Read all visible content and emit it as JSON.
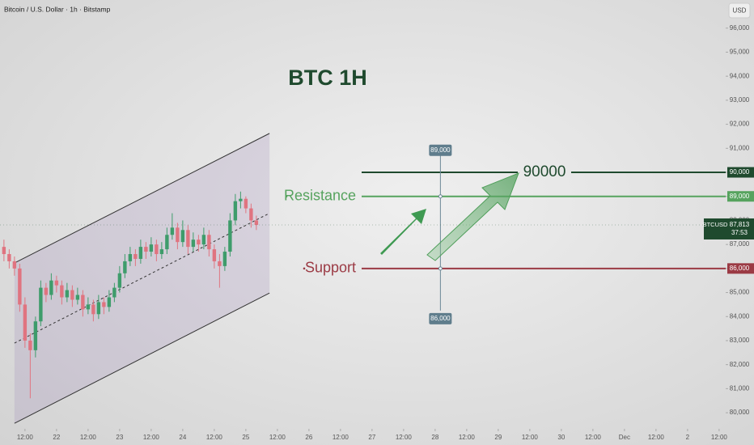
{
  "chart_data": {
    "type": "candlestick",
    "title": "Bitcoin / U.S. Dollar · 1h · Bitstamp",
    "currency_button": "USD",
    "headline": "BTC 1H",
    "colors": {
      "up": "#3e9c6b",
      "down": "#e07480"
    },
    "xlim": [
      2.5,
      278.5
    ],
    "ylim": [
      79330,
      97170
    ],
    "xticks": [
      {
        "value": 12,
        "label": "12:00"
      },
      {
        "value": 24,
        "label": "22"
      },
      {
        "value": 36,
        "label": "12:00"
      },
      {
        "value": 48,
        "label": "23"
      },
      {
        "value": 60,
        "label": "12:00"
      },
      {
        "value": 72,
        "label": "24"
      },
      {
        "value": 84,
        "label": "12:00"
      },
      {
        "value": 96,
        "label": "25"
      },
      {
        "value": 108,
        "label": "12:00"
      },
      {
        "value": 120,
        "label": "26"
      },
      {
        "value": 132,
        "label": "12:00"
      },
      {
        "value": 144,
        "label": "27"
      },
      {
        "value": 156,
        "label": "12:00"
      },
      {
        "value": 168,
        "label": "28"
      },
      {
        "value": 180,
        "label": "12:00"
      },
      {
        "value": 192,
        "label": "29"
      },
      {
        "value": 204,
        "label": "12:00"
      },
      {
        "value": 216,
        "label": "30"
      },
      {
        "value": 228,
        "label": "12:00"
      },
      {
        "value": 240,
        "label": "Dec"
      },
      {
        "value": 252,
        "label": "12:00"
      },
      {
        "value": 264,
        "label": "2"
      },
      {
        "value": 276,
        "label": "12:00"
      }
    ],
    "yticks": [
      {
        "value": 80000,
        "label": "80,000"
      },
      {
        "value": 81000,
        "label": "81,000"
      },
      {
        "value": 82000,
        "label": "82,000"
      },
      {
        "value": 83000,
        "label": "83,000"
      },
      {
        "value": 84000,
        "label": "84,000"
      },
      {
        "value": 85000,
        "label": "85,000"
      },
      {
        "value": 86000,
        "label": "86,000"
      },
      {
        "value": 87000,
        "label": "87,000"
      },
      {
        "value": 88000,
        "label": "88,000"
      },
      {
        "value": 89000,
        "label": "89,000"
      },
      {
        "value": 90000,
        "label": "90,000"
      },
      {
        "value": 91000,
        "label": "91,000"
      },
      {
        "value": 92000,
        "label": "92,000"
      },
      {
        "value": 93000,
        "label": "93,000"
      },
      {
        "value": 94000,
        "label": "94,000"
      },
      {
        "value": 95000,
        "label": "95,000"
      },
      {
        "value": 96000,
        "label": "96,000"
      }
    ],
    "candles": {
      "x": [
        4,
        6,
        8,
        10,
        12,
        14,
        16,
        18,
        20,
        22,
        24,
        26,
        28,
        30,
        32,
        34,
        36,
        38,
        40,
        42,
        44,
        46,
        48,
        50,
        52,
        54,
        56,
        58,
        60,
        62,
        64,
        66,
        68,
        70,
        72,
        74,
        76,
        78,
        80,
        82,
        84,
        86,
        88,
        90,
        92,
        94,
        96,
        98,
        100
      ],
      "open": [
        86900,
        86600,
        86300,
        86000,
        84500,
        83000,
        82600,
        83800,
        85200,
        84900,
        85500,
        85300,
        84800,
        85100,
        84700,
        84900,
        84300,
        84500,
        84100,
        84600,
        84400,
        84800,
        85200,
        85800,
        86300,
        86600,
        86400,
        86900,
        86700,
        87000,
        86600,
        86800,
        87400,
        87700,
        87100,
        87600,
        86900,
        87200,
        87000,
        87400,
        86800,
        86300,
        86100,
        86700,
        88000,
        88800,
        88900,
        88500,
        88000
      ],
      "high": [
        87200,
        86800,
        86500,
        86200,
        84800,
        83300,
        84000,
        85500,
        85400,
        85800,
        85700,
        85500,
        85400,
        85300,
        85200,
        85100,
        84800,
        84700,
        84900,
        84800,
        85100,
        85400,
        86100,
        86600,
        86900,
        86800,
        87200,
        87100,
        87300,
        87200,
        87100,
        87700,
        88300,
        87900,
        88000,
        87800,
        87500,
        87400,
        87700,
        87600,
        87000,
        86600,
        86900,
        88300,
        89100,
        89200,
        89000,
        88700,
        88200
      ],
      "low": [
        86300,
        86000,
        85700,
        84200,
        82700,
        80600,
        82300,
        83600,
        84600,
        84700,
        85000,
        84500,
        84600,
        84400,
        84500,
        84000,
        84100,
        83800,
        83900,
        84100,
        84200,
        84600,
        85000,
        85600,
        86100,
        86100,
        86200,
        86400,
        86500,
        86300,
        86400,
        86600,
        87200,
        86800,
        86900,
        86600,
        86700,
        86700,
        86800,
        86500,
        86000,
        85200,
        85900,
        86500,
        87800,
        88500,
        88300,
        87700,
        87600
      ],
      "close": [
        86600,
        86300,
        86000,
        84500,
        83000,
        82600,
        83800,
        85200,
        84900,
        85500,
        85300,
        84800,
        85100,
        84700,
        84900,
        84300,
        84500,
        84100,
        84600,
        84400,
        84800,
        85200,
        85800,
        86300,
        86600,
        86400,
        86900,
        86700,
        87000,
        86600,
        86800,
        87400,
        87700,
        87100,
        87600,
        86900,
        87200,
        87000,
        87400,
        86800,
        86300,
        86100,
        86700,
        88000,
        88800,
        88900,
        88500,
        88000,
        87813
      ]
    },
    "channel": {
      "upper": [
        [
          8,
          86230
        ],
        [
          105,
          91620
        ]
      ],
      "lower": [
        [
          8,
          79560
        ],
        [
          105,
          84980
        ]
      ]
    },
    "levels": [
      {
        "value": 90000,
        "label": "90,000",
        "text": "90000",
        "color": "#1f4a2e"
      },
      {
        "value": 89000,
        "label": "89,000",
        "text": "Resistance",
        "color": "#56a35e"
      },
      {
        "value": 86000,
        "label": "86,000",
        "text": "Support",
        "color": "#9b3a44"
      }
    ],
    "measure": {
      "x": 170,
      "top": {
        "value": 89000,
        "label": "89,000"
      },
      "bottom": {
        "value": 86000,
        "label": "86,000"
      }
    },
    "last_price": {
      "symbol": "BTCUSD",
      "value": 87813,
      "label": "87,813",
      "countdown": "37:53"
    }
  }
}
